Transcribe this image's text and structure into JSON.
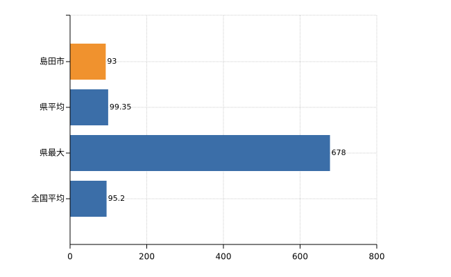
{
  "chart_data": {
    "type": "hbar",
    "categories": [
      "島田市",
      "県平均",
      "県最大",
      "全国平均"
    ],
    "values": [
      93,
      99.35,
      678,
      95.2
    ],
    "colors": [
      "#f0922e",
      "#3b6ea8",
      "#3b6ea8",
      "#3b6ea8"
    ],
    "xlim": [
      0,
      800
    ],
    "xticks": [
      0,
      200,
      400,
      600,
      800
    ],
    "grid": true
  }
}
